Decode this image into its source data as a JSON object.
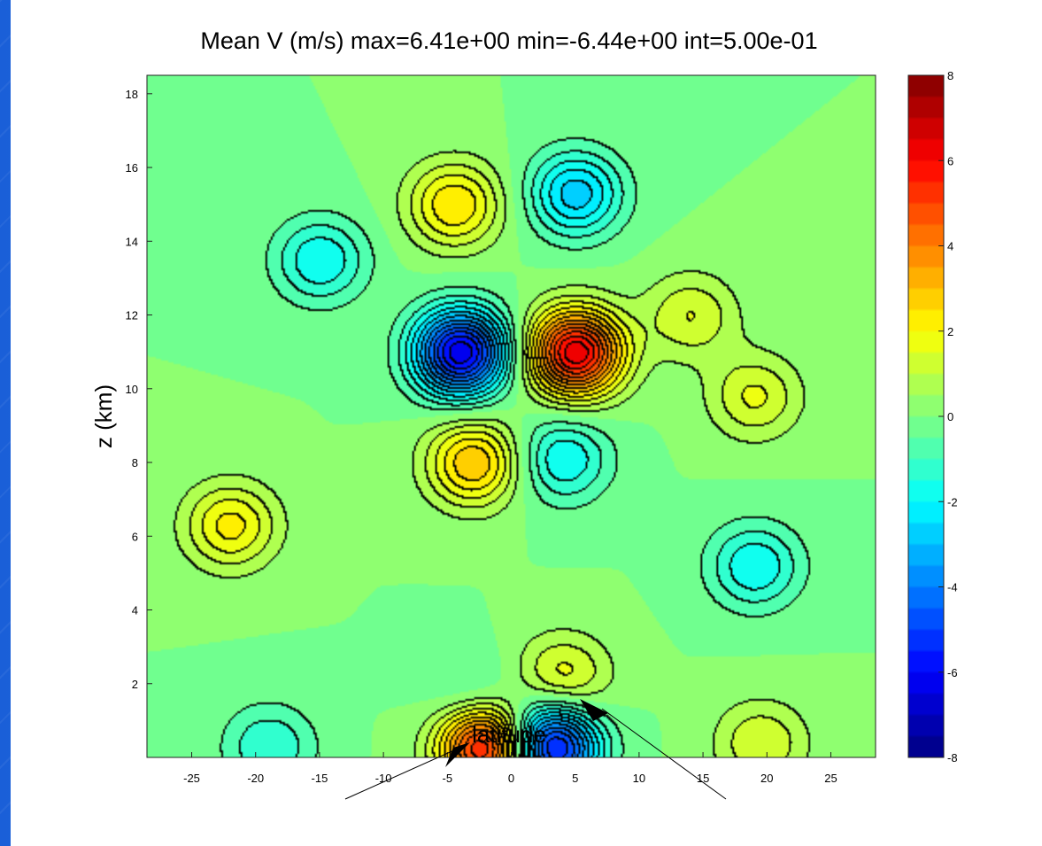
{
  "chart_data": {
    "type": "heatmap",
    "title": "Mean V (m/s) max=6.41e+00 min=-6.44e+00 int=5.00e-01",
    "xlabel": "latitude",
    "ylabel": "z (km)",
    "xlim": [
      -28.5,
      28.5
    ],
    "ylim": [
      0,
      18.5
    ],
    "x_ticks": [
      -25,
      -20,
      -15,
      -10,
      -5,
      0,
      5,
      10,
      15,
      20,
      25
    ],
    "y_ticks": [
      2,
      4,
      6,
      8,
      10,
      12,
      14,
      16,
      18
    ],
    "colorbar": {
      "min": -8,
      "max": 8,
      "ticks": [
        8,
        6,
        4,
        2,
        0,
        -2,
        -4,
        -6,
        -8
      ]
    },
    "contour_interval": 0.5,
    "max": 6.41,
    "min": -6.44,
    "features": [
      {
        "lat": 5,
        "z": 11,
        "value": 6.4
      },
      {
        "lat": -4,
        "z": 11,
        "value": -6.4
      },
      {
        "lat": -3,
        "z": 8,
        "value": 3
      },
      {
        "lat": -22,
        "z": 6.3,
        "value": 2.2
      },
      {
        "lat": -4.5,
        "z": 15,
        "value": 2.5
      },
      {
        "lat": 5,
        "z": 15.3,
        "value": -2.8
      },
      {
        "lat": -15,
        "z": 13.5,
        "value": -2
      },
      {
        "lat": 14,
        "z": 12,
        "value": 1.5
      },
      {
        "lat": 19,
        "z": 9.8,
        "value": 1.6
      },
      {
        "lat": 4,
        "z": 8.1,
        "value": -2
      },
      {
        "lat": 19,
        "z": 5.2,
        "value": -2
      },
      {
        "lat": -2,
        "z": 0.3,
        "value": 6.2
      },
      {
        "lat": 3,
        "z": 0.3,
        "value": -6.2
      },
      {
        "lat": 4,
        "z": 2.2,
        "value": 1.8
      },
      {
        "lat": -3,
        "z": 1.6,
        "value": -1
      },
      {
        "lat": 19.5,
        "z": 0.4,
        "value": 1.5
      },
      {
        "lat": -19,
        "z": 0.3,
        "value": -1.5
      }
    ]
  },
  "colors": {
    "background": "#55ffaa",
    "slide_accent": "#1a6be0",
    "colormap": "jet"
  }
}
